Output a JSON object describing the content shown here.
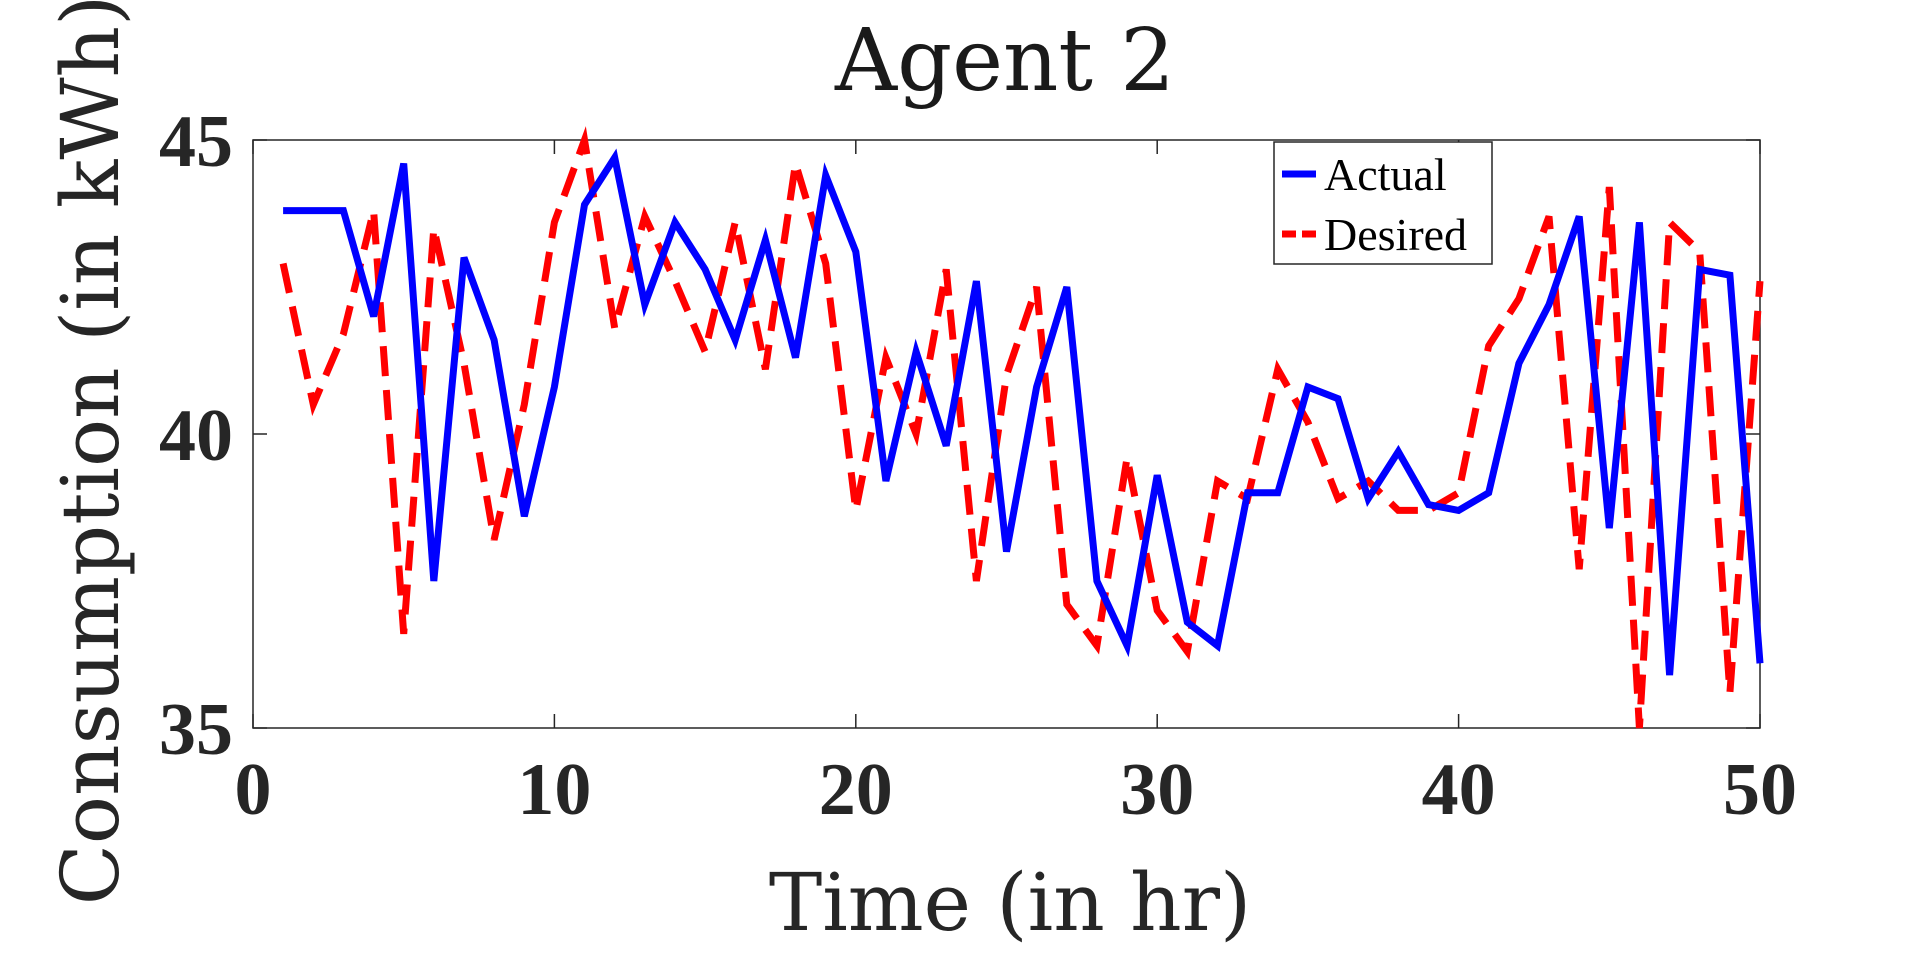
{
  "chart_data": {
    "type": "line",
    "title": "Agent 2",
    "xlabel": "Time (in hr)",
    "ylabel": "Consumption (in kWh)",
    "xlim": [
      0,
      50
    ],
    "ylim": [
      35,
      45
    ],
    "xticks": [
      0,
      10,
      20,
      30,
      40,
      50
    ],
    "yticks": [
      35,
      40,
      45
    ],
    "grid": false,
    "legend_position": "top-right",
    "x": [
      1,
      2,
      3,
      4,
      5,
      6,
      7,
      8,
      9,
      10,
      11,
      12,
      13,
      14,
      15,
      16,
      17,
      18,
      19,
      20,
      21,
      22,
      23,
      24,
      25,
      26,
      27,
      28,
      29,
      30,
      31,
      32,
      33,
      34,
      35,
      36,
      37,
      38,
      39,
      40,
      41,
      42,
      43,
      44,
      45,
      46,
      47,
      48,
      49,
      50
    ],
    "series": [
      {
        "name": "Actual",
        "color": "#0000ff",
        "style": "solid",
        "values": [
          43.8,
          43.8,
          43.8,
          42.0,
          44.6,
          37.5,
          43.0,
          41.6,
          38.6,
          40.8,
          43.9,
          44.7,
          42.2,
          43.6,
          42.8,
          41.6,
          43.3,
          41.3,
          44.4,
          43.1,
          39.2,
          41.4,
          39.8,
          42.6,
          38.0,
          40.8,
          42.5,
          37.5,
          36.4,
          39.3,
          36.8,
          36.4,
          39.0,
          39.0,
          40.8,
          40.6,
          38.9,
          39.7,
          38.8,
          38.7,
          39.0,
          41.2,
          42.2,
          43.7,
          38.4,
          43.6,
          35.9,
          42.8,
          42.7,
          36.1
        ]
      },
      {
        "name": "Desired",
        "color": "#ff0000",
        "style": "dashed",
        "values": [
          42.9,
          40.5,
          41.7,
          43.8,
          36.6,
          43.5,
          41.2,
          38.2,
          40.5,
          43.6,
          45.0,
          41.8,
          43.7,
          42.6,
          41.4,
          43.6,
          41.1,
          44.6,
          42.9,
          38.7,
          41.3,
          40.0,
          42.8,
          37.5,
          41.0,
          42.5,
          37.1,
          36.4,
          39.6,
          37.0,
          36.3,
          39.2,
          38.9,
          41.1,
          40.2,
          38.9,
          39.2,
          38.7,
          38.7,
          39.0,
          41.5,
          42.3,
          43.7,
          37.7,
          44.2,
          35.0,
          43.6,
          43.1,
          35.6,
          42.6
        ]
      }
    ]
  }
}
